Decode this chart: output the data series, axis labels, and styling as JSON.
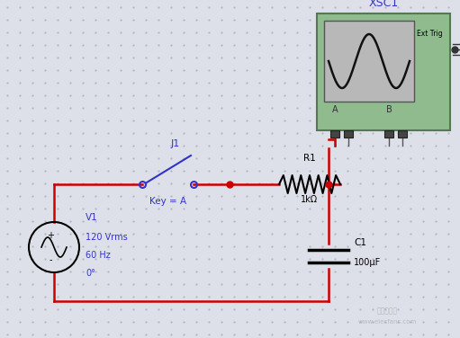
{
  "background_color": "#dde0e8",
  "dot_color": "#aaaabc",
  "wire_color": "#cc0000",
  "component_color": "#000000",
  "blue_color": "#3333cc",
  "label_color": "#000000",
  "osc_green": "#8fbb8f",
  "osc_screen": "#b8b8b8",
  "osc_border": "#557755",
  "xsc1_label": "XSC1",
  "xsc1_ext": "Ext Trig",
  "xsc1_a": "A",
  "xsc1_b": "B",
  "v1_label": "V1",
  "v1_specs": [
    "120 Vrms",
    "60 Hz",
    "0°"
  ],
  "j1_label": "J1",
  "j1_key": "Key = A",
  "r1_label": "R1",
  "r1_val": "1kΩ",
  "c1_label": "C1",
  "c1_val": "100μF",
  "watermark": "电子发烧网",
  "watermark2": "www.elecfans.com",
  "figsize": [
    5.11,
    3.76
  ],
  "dpi": 100
}
